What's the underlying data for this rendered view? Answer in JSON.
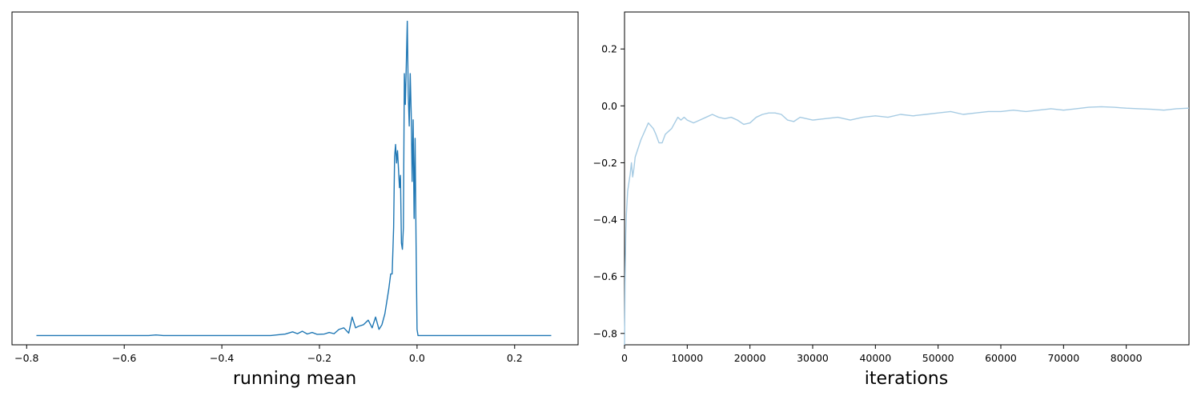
{
  "chart_data": [
    {
      "type": "line",
      "xlabel": "running mean",
      "ylabel": "",
      "yticks_visible": false,
      "xlim": [
        -0.83,
        0.33
      ],
      "ylim": [
        -0.3,
        10.5
      ],
      "xticks": [
        -0.8,
        -0.6,
        -0.4,
        -0.2,
        0.0,
        0.2
      ],
      "xtick_labels": [
        "−0.8",
        "−0.6",
        "−0.4",
        "−0.2",
        "0.0",
        "0.2"
      ],
      "grid": false,
      "color": "#1f77b4",
      "series": [
        {
          "x": [
            -0.78,
            -0.75,
            -0.7,
            -0.65,
            -0.6,
            -0.55,
            -0.535,
            -0.52,
            -0.5,
            -0.45,
            -0.4,
            -0.35,
            -0.3,
            -0.27,
            -0.255,
            -0.245,
            -0.235,
            -0.225,
            -0.215,
            -0.205,
            -0.19,
            -0.18,
            -0.17,
            -0.16,
            -0.15,
            -0.14,
            -0.133,
            -0.126,
            -0.12,
            -0.11,
            -0.1,
            -0.092,
            -0.085,
            -0.078,
            -0.072,
            -0.066,
            -0.062,
            -0.058,
            -0.054,
            -0.051,
            -0.048,
            -0.046,
            -0.044,
            -0.042,
            -0.04,
            -0.038,
            -0.036,
            -0.034,
            -0.032,
            -0.03,
            -0.028,
            -0.026,
            -0.024,
            -0.022,
            -0.02,
            -0.018,
            -0.016,
            -0.014,
            -0.012,
            -0.01,
            -0.008,
            -0.006,
            -0.004,
            -0.002,
            0.0,
            0.002,
            0.005,
            0.02,
            0.05,
            0.1,
            0.15,
            0.2,
            0.275
          ],
          "y": [
            0.0,
            0.0,
            0.0,
            0.0,
            0.0,
            0.0,
            0.02,
            0.0,
            0.0,
            0.0,
            0.0,
            0.0,
            0.0,
            0.05,
            0.12,
            0.06,
            0.14,
            0.05,
            0.1,
            0.04,
            0.05,
            0.1,
            0.06,
            0.2,
            0.25,
            0.08,
            0.6,
            0.25,
            0.3,
            0.35,
            0.5,
            0.25,
            0.6,
            0.2,
            0.35,
            0.7,
            1.1,
            1.5,
            2.0,
            2.0,
            3.5,
            5.8,
            6.2,
            5.6,
            6.0,
            5.4,
            4.8,
            5.2,
            3.0,
            2.8,
            3.5,
            8.5,
            7.5,
            8.8,
            10.2,
            7.8,
            6.8,
            8.5,
            7.2,
            5.0,
            7.0,
            3.8,
            6.4,
            3.0,
            0.2,
            0.0,
            0.0,
            0.0,
            0.0,
            0.0,
            0.0,
            0.0,
            0.0
          ]
        }
      ]
    },
    {
      "type": "line",
      "xlabel": "iterations",
      "ylabel": "",
      "xlim": [
        0,
        90000
      ],
      "ylim": [
        -0.84,
        0.33
      ],
      "xticks": [
        0,
        10000,
        20000,
        30000,
        40000,
        50000,
        60000,
        70000,
        80000
      ],
      "xtick_labels": [
        "0",
        "10000",
        "20000",
        "30000",
        "40000",
        "50000",
        "60000",
        "70000",
        "80000"
      ],
      "yticks": [
        -0.8,
        -0.6,
        -0.4,
        -0.2,
        0.0,
        0.2
      ],
      "ytick_labels": [
        "−0.8",
        "−0.6",
        "−0.4",
        "−0.2",
        "0.0",
        "0.2"
      ],
      "grid": false,
      "color": "#a6cbe3",
      "series": [
        {
          "x": [
            0,
            100,
            200,
            300,
            500,
            700,
            900,
            1100,
            1300,
            1500,
            1700,
            2000,
            2300,
            2600,
            3000,
            3400,
            3800,
            4200,
            4600,
            5000,
            5500,
            6000,
            6500,
            7000,
            7500,
            8000,
            8500,
            9000,
            9500,
            10000,
            11000,
            12000,
            13000,
            14000,
            15000,
            16000,
            17000,
            18000,
            19000,
            20000,
            21000,
            22000,
            23000,
            24000,
            25000,
            26000,
            27000,
            28000,
            30000,
            32000,
            34000,
            36000,
            38000,
            40000,
            42000,
            44000,
            46000,
            48000,
            50000,
            52000,
            54000,
            56000,
            58000,
            60000,
            62000,
            64000,
            66000,
            68000,
            70000,
            72000,
            74000,
            76000,
            78000,
            80000,
            82000,
            84000,
            86000,
            88000,
            90000
          ],
          "y": [
            -0.84,
            -0.6,
            -0.45,
            -0.38,
            -0.3,
            -0.27,
            -0.24,
            -0.2,
            -0.25,
            -0.22,
            -0.18,
            -0.16,
            -0.14,
            -0.12,
            -0.1,
            -0.08,
            -0.06,
            -0.07,
            -0.08,
            -0.1,
            -0.13,
            -0.13,
            -0.1,
            -0.09,
            -0.08,
            -0.06,
            -0.04,
            -0.05,
            -0.04,
            -0.05,
            -0.06,
            -0.05,
            -0.04,
            -0.03,
            -0.04,
            -0.045,
            -0.04,
            -0.05,
            -0.065,
            -0.06,
            -0.04,
            -0.03,
            -0.025,
            -0.025,
            -0.03,
            -0.05,
            -0.055,
            -0.04,
            -0.05,
            -0.045,
            -0.04,
            -0.05,
            -0.04,
            -0.035,
            -0.04,
            -0.03,
            -0.035,
            -0.03,
            -0.025,
            -0.02,
            -0.03,
            -0.025,
            -0.02,
            -0.02,
            -0.015,
            -0.02,
            -0.015,
            -0.01,
            -0.015,
            -0.01,
            -0.005,
            -0.003,
            -0.005,
            -0.008,
            -0.01,
            -0.012,
            -0.015,
            -0.01,
            -0.008
          ]
        }
      ]
    }
  ]
}
